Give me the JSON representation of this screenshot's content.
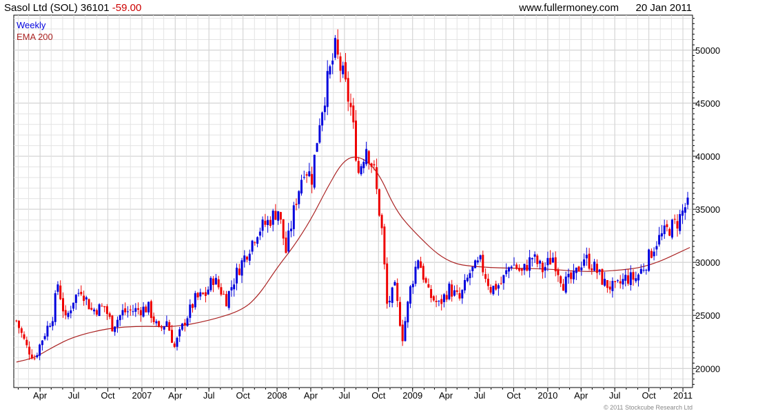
{
  "header": {
    "name": "Sasol Ltd (SOL)",
    "last": "36101",
    "change": "-59.00",
    "site": "www.fullermoney.com",
    "date": "20 Jan 2011"
  },
  "legend": {
    "period": "Weekly",
    "ema": "EMA 200"
  },
  "copyright": "© 2011 Stockcube Research Ltd",
  "colors": {
    "up": "#0000dd",
    "down": "#ee0000",
    "ema": "#aa2222",
    "change": "#cc0000",
    "grid": "#e3e3e3",
    "axis": "#000000"
  },
  "chart_data": {
    "type": "candlestick",
    "period": "weekly",
    "x_axis": "date",
    "ylim": [
      18200,
      53300
    ],
    "yticks": [
      20000,
      25000,
      30000,
      35000,
      40000,
      45000,
      50000
    ],
    "ytick_labels": [
      "20000",
      "25000",
      "30000",
      "35000",
      "40000",
      "45000",
      "50000"
    ],
    "xticks": [
      {
        "label": "Apr",
        "date": "2006-04-01"
      },
      {
        "label": "Jul",
        "date": "2006-07-01"
      },
      {
        "label": "Oct",
        "date": "2006-10-01"
      },
      {
        "label": "2007",
        "date": "2007-01-01"
      },
      {
        "label": "Apr",
        "date": "2007-04-01"
      },
      {
        "label": "Jul",
        "date": "2007-07-01"
      },
      {
        "label": "Oct",
        "date": "2007-10-01"
      },
      {
        "label": "2008",
        "date": "2008-01-01"
      },
      {
        "label": "Apr",
        "date": "2008-04-01"
      },
      {
        "label": "Jul",
        "date": "2008-07-01"
      },
      {
        "label": "Oct",
        "date": "2008-10-01"
      },
      {
        "label": "2009",
        "date": "2009-01-01"
      },
      {
        "label": "Apr",
        "date": "2009-04-01"
      },
      {
        "label": "Jul",
        "date": "2009-07-01"
      },
      {
        "label": "Oct",
        "date": "2009-10-01"
      },
      {
        "label": "2010",
        "date": "2010-01-01"
      },
      {
        "label": "Apr",
        "date": "2010-04-01"
      },
      {
        "label": "Jul",
        "date": "2010-07-01"
      },
      {
        "label": "Oct",
        "date": "2010-10-01"
      },
      {
        "label": "2011",
        "date": "2011-01-01"
      }
    ],
    "grid": true,
    "legend_position": "top-left",
    "close_path": [
      [
        "2006-01-27",
        24500
      ],
      [
        "2006-02-24",
        22000
      ],
      [
        "2006-03-17",
        21000
      ],
      [
        "2006-04-07",
        22800
      ],
      [
        "2006-05-05",
        25000
      ],
      [
        "2006-05-19",
        28000
      ],
      [
        "2006-06-09",
        24500
      ],
      [
        "2006-06-30",
        26500
      ],
      [
        "2006-07-21",
        27500
      ],
      [
        "2006-08-18",
        25500
      ],
      [
        "2006-09-22",
        25800
      ],
      [
        "2006-10-13",
        24000
      ],
      [
        "2006-11-10",
        25300
      ],
      [
        "2006-12-15",
        25500
      ],
      [
        "2007-01-19",
        25700
      ],
      [
        "2007-02-16",
        23500
      ],
      [
        "2007-03-09",
        24500
      ],
      [
        "2007-03-30",
        22000
      ],
      [
        "2007-04-27",
        24500
      ],
      [
        "2007-05-25",
        26500
      ],
      [
        "2007-06-22",
        27000
      ],
      [
        "2007-07-13",
        28500
      ],
      [
        "2007-08-17",
        26500
      ],
      [
        "2007-09-14",
        29000
      ],
      [
        "2007-10-12",
        31000
      ],
      [
        "2007-11-09",
        33000
      ],
      [
        "2007-12-07",
        33800
      ],
      [
        "2008-01-04",
        35000
      ],
      [
        "2008-01-25",
        31000
      ],
      [
        "2008-02-22",
        36000
      ],
      [
        "2008-03-14",
        39000
      ],
      [
        "2008-04-04",
        38000
      ],
      [
        "2008-04-25",
        43500
      ],
      [
        "2008-05-16",
        47000
      ],
      [
        "2008-06-06",
        50000
      ],
      [
        "2008-06-27",
        47500
      ],
      [
        "2008-07-18",
        44500
      ],
      [
        "2008-08-08",
        38500
      ],
      [
        "2008-08-29",
        41000
      ],
      [
        "2008-09-19",
        38500
      ],
      [
        "2008-10-10",
        33000
      ],
      [
        "2008-10-24",
        26000
      ],
      [
        "2008-11-14",
        27500
      ],
      [
        "2008-12-05",
        23000
      ],
      [
        "2008-12-26",
        27500
      ],
      [
        "2009-01-16",
        30500
      ],
      [
        "2009-02-13",
        27000
      ],
      [
        "2009-03-13",
        26000
      ],
      [
        "2009-04-10",
        27500
      ],
      [
        "2009-05-08",
        26500
      ],
      [
        "2009-06-05",
        29000
      ],
      [
        "2009-07-03",
        30000
      ],
      [
        "2009-07-31",
        27500
      ],
      [
        "2009-08-28",
        28000
      ],
      [
        "2009-09-25",
        30000
      ],
      [
        "2009-10-23",
        29000
      ],
      [
        "2009-11-20",
        30500
      ],
      [
        "2009-12-18",
        29300
      ],
      [
        "2010-01-15",
        30500
      ],
      [
        "2010-02-12",
        28000
      ],
      [
        "2010-03-12",
        28500
      ],
      [
        "2010-04-09",
        30500
      ],
      [
        "2010-05-07",
        29500
      ],
      [
        "2010-06-04",
        28000
      ],
      [
        "2010-07-02",
        27500
      ],
      [
        "2010-07-30",
        28500
      ],
      [
        "2010-08-27",
        28500
      ],
      [
        "2010-09-24",
        30000
      ],
      [
        "2010-10-22",
        32000
      ],
      [
        "2010-11-19",
        33000
      ],
      [
        "2010-12-17",
        33800
      ],
      [
        "2011-01-20",
        36101
      ]
    ],
    "ema_200": [
      [
        "2006-01-27",
        20600
      ],
      [
        "2006-03-17",
        21000
      ],
      [
        "2006-05-05",
        22000
      ],
      [
        "2006-07-01",
        23000
      ],
      [
        "2006-10-01",
        23800
      ],
      [
        "2007-01-01",
        24000
      ],
      [
        "2007-04-01",
        23900
      ],
      [
        "2007-07-01",
        24500
      ],
      [
        "2007-10-01",
        25500
      ],
      [
        "2007-11-15",
        27000
      ],
      [
        "2008-01-01",
        29500
      ],
      [
        "2008-02-15",
        31500
      ],
      [
        "2008-04-01",
        34000
      ],
      [
        "2008-05-15",
        37000
      ],
      [
        "2008-07-01",
        39800
      ],
      [
        "2008-08-15",
        40000
      ],
      [
        "2008-10-01",
        38500
      ],
      [
        "2008-11-15",
        35000
      ],
      [
        "2009-01-01",
        33000
      ],
      [
        "2009-04-01",
        30000
      ],
      [
        "2009-07-01",
        29500
      ],
      [
        "2010-01-01",
        29400
      ],
      [
        "2010-04-01",
        29100
      ],
      [
        "2010-07-01",
        29200
      ],
      [
        "2010-10-01",
        29600
      ],
      [
        "2011-01-20",
        31400
      ]
    ]
  }
}
